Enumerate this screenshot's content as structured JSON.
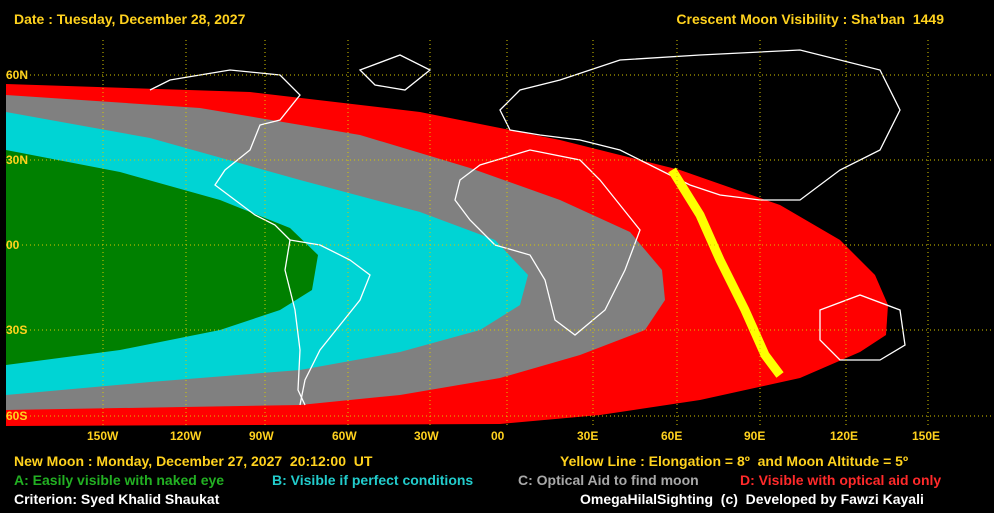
{
  "header": {
    "date": "Date : Tuesday, December 28, 2027",
    "title": "Crescent Moon Visibility : Sha'ban  1449"
  },
  "map": {
    "lat_labels": [
      "60N",
      "30N",
      "00",
      "30S",
      "60S"
    ],
    "lon_labels": [
      "150W",
      "120W",
      "90W",
      "60W",
      "30W",
      "00",
      "30E",
      "60E",
      "90E",
      "120E",
      "150E"
    ]
  },
  "footer": {
    "new_moon": "New Moon : Monday, December 27, 2027  20:12:00  UT",
    "yellow_line": "Yellow Line : Elongation = 8º  and Moon Altitude = 5º",
    "legend": [
      "A: Easily visible with naked eye",
      "B: Visible if perfect conditions",
      "C: Optical Aid to find moon",
      "D: Visible with optical aid only"
    ],
    "criterion": "Criterion: Syed Khalid Shaukat",
    "credits": "OmegaHilalSighting  (c)  Developed by Fawzi Kayali"
  }
}
